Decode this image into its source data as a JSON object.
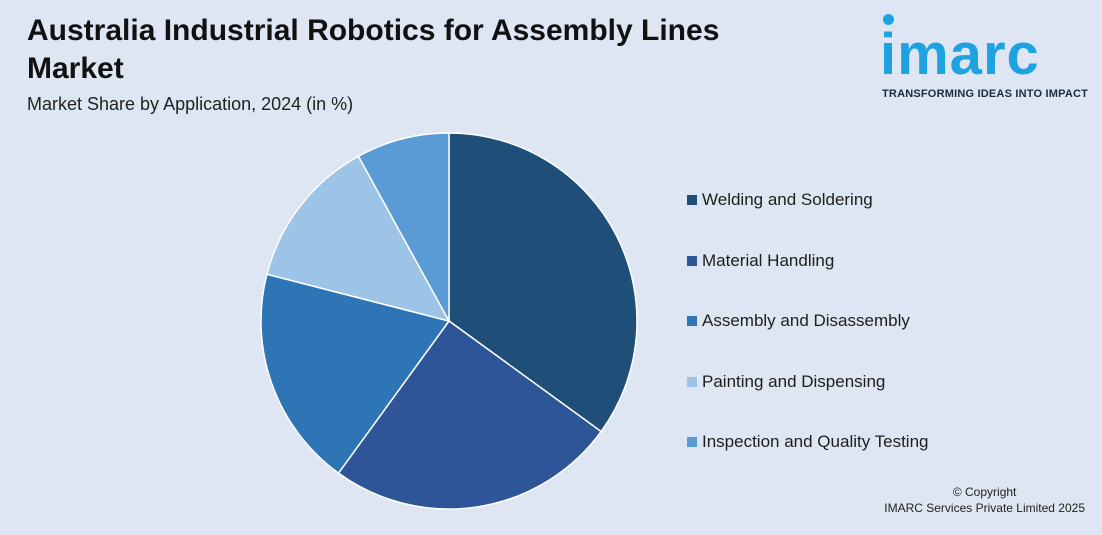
{
  "header": {
    "title": "Australia Industrial Robotics for Assembly Lines Market",
    "subtitle": "Market Share by Application, 2024 (in %)"
  },
  "logo": {
    "wordmark": "imarc",
    "tagline": "TRANSFORMING IDEAS INTO IMPACT",
    "color": "#1fa3e0"
  },
  "chart_data": {
    "type": "pie",
    "title": "Australia Industrial Robotics for Assembly Lines Market",
    "subtitle": "Market Share by Application, 2024 (in %)",
    "categories": [
      "Welding and Soldering",
      "Material Handling",
      "Assembly and Disassembly",
      "Painting and Dispensing",
      "Inspection and Quality Testing"
    ],
    "values": [
      35,
      25,
      19,
      13,
      8
    ],
    "colors": [
      "#1f4e79",
      "#2e5597",
      "#2e75b6",
      "#9dc3e6",
      "#5b9bd5"
    ],
    "legend_position": "right"
  },
  "footer": {
    "copyright_line1": "© Copyright",
    "copyright_line2": "IMARC Services Private Limited 2025"
  }
}
